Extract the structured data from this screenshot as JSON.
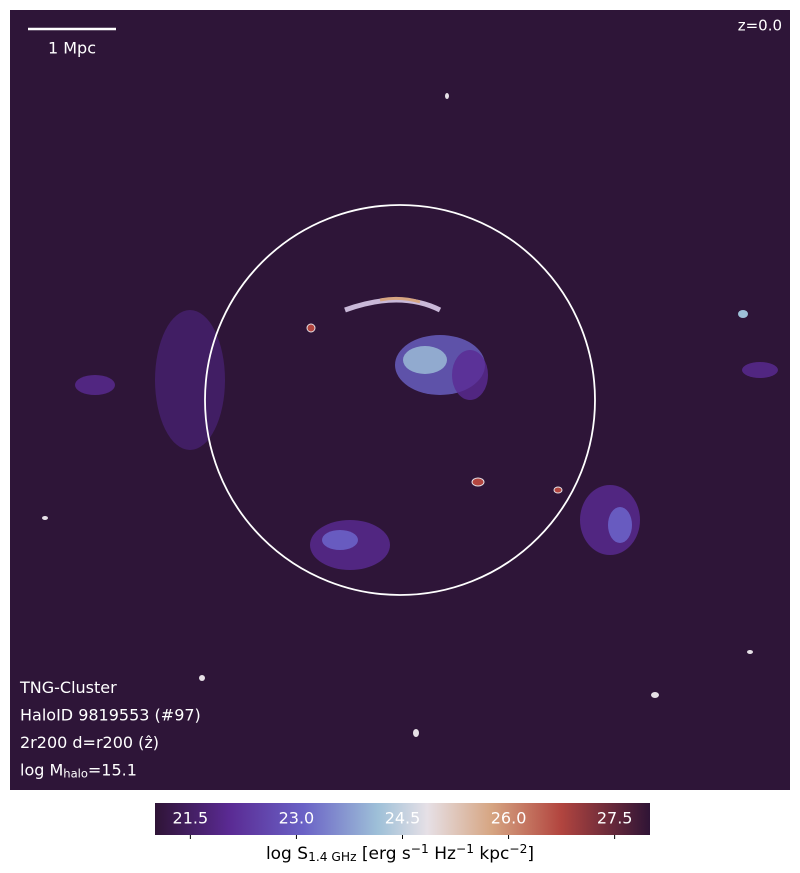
{
  "image": {
    "scale_bar_label": "1 Mpc",
    "redshift_label": "z=0.0",
    "annotations": [
      [
        {
          "text": "TNG-Cluster"
        }
      ],
      [
        {
          "text": "HaloID 9819553 (#97)"
        }
      ],
      [
        {
          "text": "2r200 d=r200 (ẑ)"
        }
      ],
      [
        {
          "text": "log M"
        },
        {
          "sub": "halo"
        },
        {
          "text": "=15.1"
        }
      ]
    ]
  },
  "colorbar": {
    "lim": [
      21.0,
      28.0
    ],
    "ticks": [
      21.5,
      {
        "value": 23,
        "label": "23.0"
      },
      24.5,
      {
        "value": 26,
        "label": "26.0"
      },
      27.5
    ],
    "label": [
      {
        "text": "log S"
      },
      {
        "sub": "1.4 GHz"
      },
      {
        "text": " [erg s"
      },
      {
        "sup": "−1"
      },
      {
        "text": " Hz"
      },
      {
        "sup": "−1"
      },
      {
        "text": " kpc"
      },
      {
        "sup": "−2"
      },
      {
        "text": "]"
      }
    ]
  }
}
